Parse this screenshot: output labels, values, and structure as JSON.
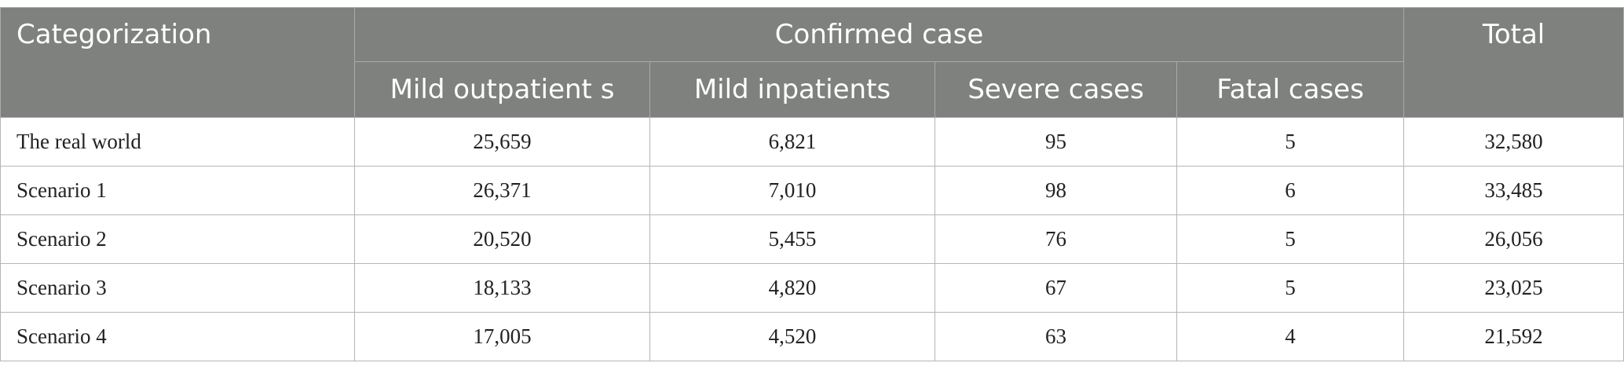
{
  "table": {
    "header": {
      "categorization": "Categorization",
      "confirmed_case": "Confirmed case",
      "total": "Total",
      "subheaders": [
        "Mild outpatient s",
        "Mild inpatients",
        "Severe cases",
        "Fatal cases"
      ]
    },
    "rows": [
      [
        "The real world",
        "25,659",
        "6,821",
        "95",
        "5",
        "32,580"
      ],
      [
        "Scenario 1",
        "26,371",
        "7,010",
        "98",
        "6",
        "33,485"
      ],
      [
        "Scenario 2",
        "20,520",
        "5,455",
        "76",
        "5",
        "26,056"
      ],
      [
        "Scenario 3",
        "18,133",
        "4,820",
        "67",
        "5",
        "23,025"
      ],
      [
        "Scenario 4",
        "17,005",
        "4,520",
        "63",
        "4",
        "21,592"
      ]
    ]
  }
}
